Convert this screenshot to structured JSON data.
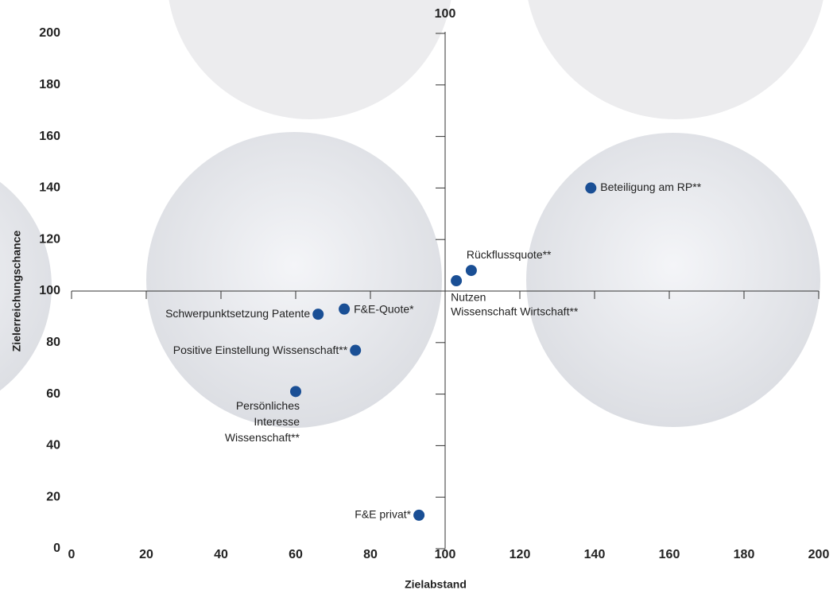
{
  "chart_data": {
    "type": "scatter",
    "x_label": "Zielabstand",
    "y_label": "Zielerreichungschance",
    "xlim": [
      0,
      200
    ],
    "xticks": [
      0,
      20,
      40,
      60,
      80,
      100,
      120,
      140,
      160,
      180,
      200
    ],
    "ylim": [
      0,
      200
    ],
    "yticks": [
      0,
      20,
      40,
      60,
      80,
      100,
      120,
      140,
      160,
      180,
      200
    ],
    "y_axis_at_x": 100,
    "x_axis_at_y": 100,
    "color": "#1a4f95",
    "x": [
      139,
      107,
      103,
      73,
      66,
      76,
      60,
      93
    ],
    "values": [
      140,
      108,
      104,
      93,
      91,
      77,
      61,
      13
    ],
    "point_labels": [
      [
        "Beteiligung am RP**"
      ],
      [
        "Rückflussquote**"
      ],
      [
        "Nutzen",
        "Wissenschaft Wirtschaft**"
      ],
      [
        "F&E-Quote*"
      ],
      [
        "Schwerpunktsetzung Patente"
      ],
      [
        "Positive Einstellung Wissenschaft**"
      ],
      [
        "Persönliches",
        "Interesse",
        "Wissenschaft**"
      ],
      [
        "F&E privat*"
      ]
    ]
  }
}
